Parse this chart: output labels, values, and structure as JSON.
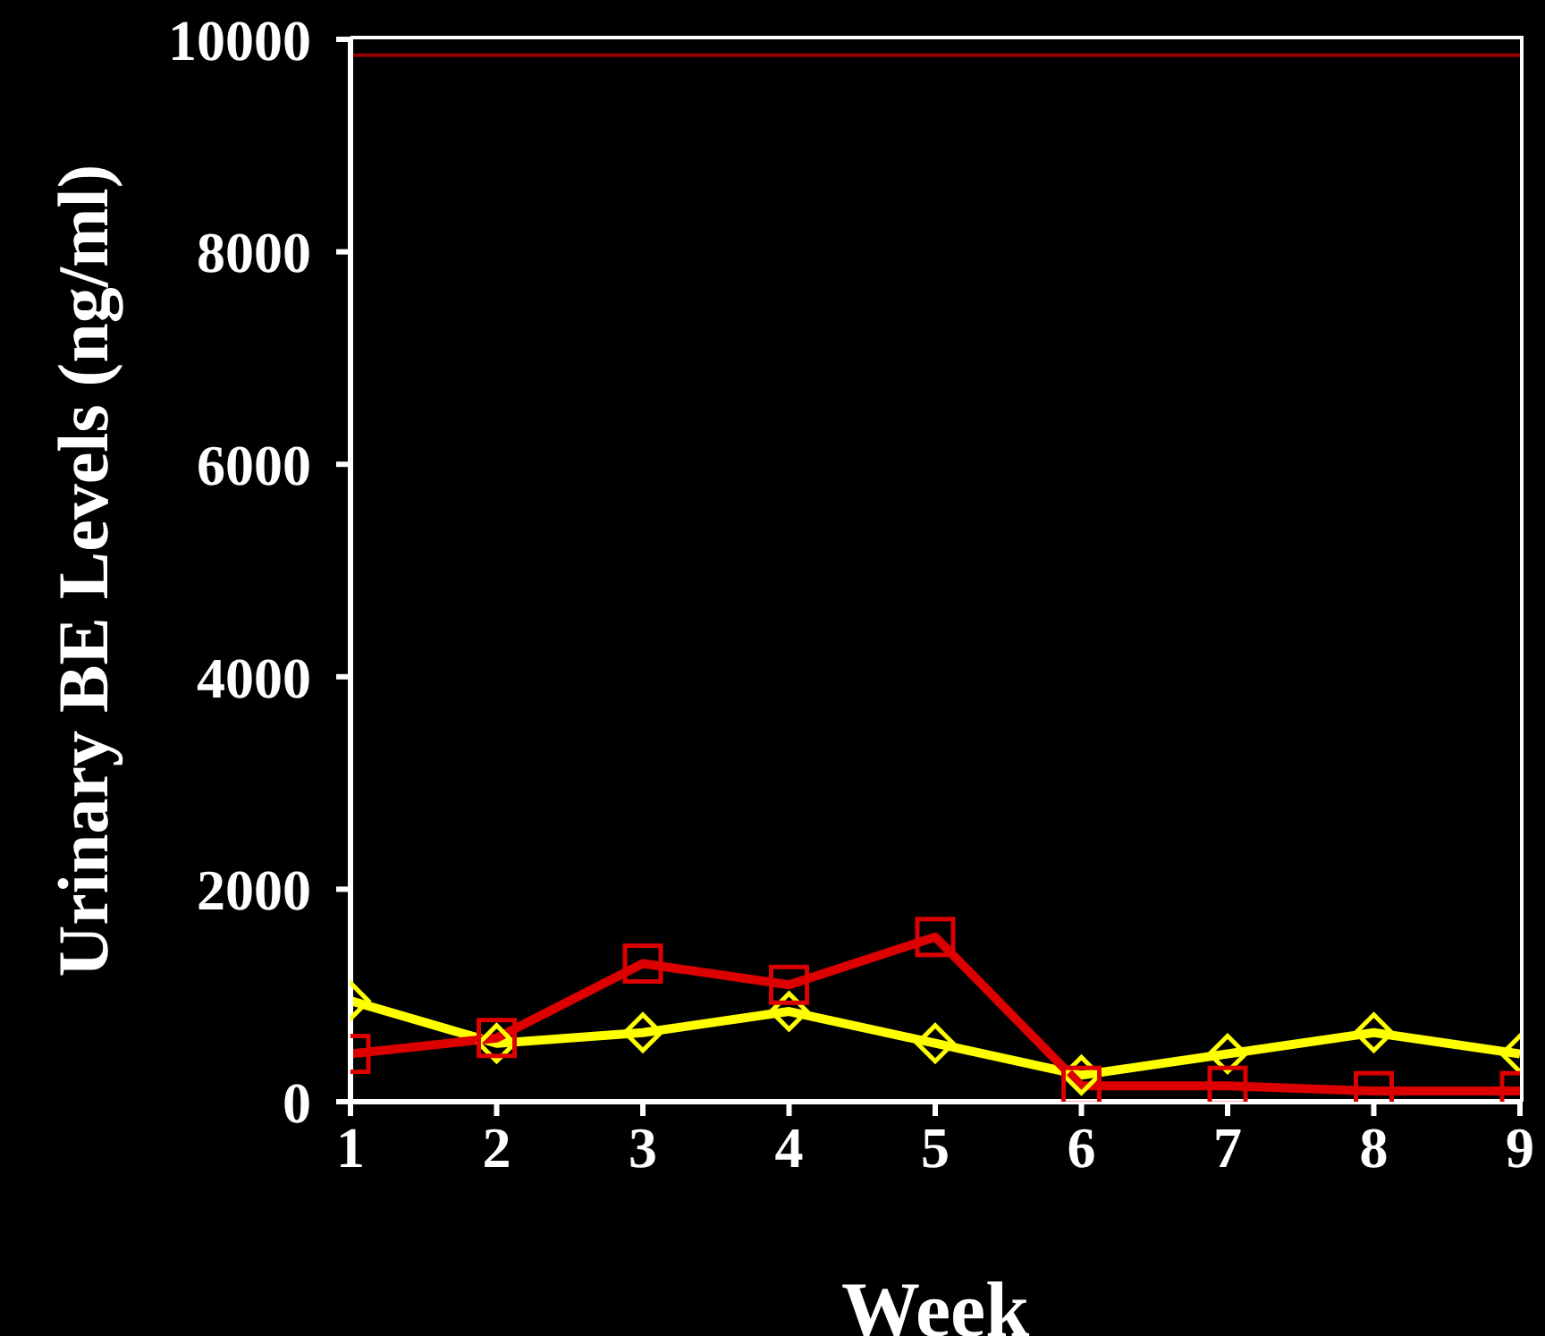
{
  "chart_data": {
    "type": "line",
    "xlabel": "Week",
    "ylabel": "Urinary BE Levels (ng/ml)",
    "x": [
      1,
      2,
      3,
      4,
      5,
      6,
      7,
      8,
      9
    ],
    "xlim": [
      1,
      9
    ],
    "xticks": [
      1,
      2,
      3,
      4,
      5,
      6,
      7,
      8,
      9
    ],
    "ylim": [
      0,
      10000
    ],
    "yticks": [
      0,
      2000,
      4000,
      6000,
      8000,
      10000
    ],
    "grid": false,
    "legend": false,
    "line_style": "solid",
    "ref_lines": [
      {
        "axis": "y",
        "value": 9850,
        "color": "#990000"
      }
    ],
    "series": [
      {
        "color": "#ffff00",
        "marker": "diamond",
        "values": [
          950,
          550,
          650,
          850,
          550,
          250,
          450,
          650,
          450
        ]
      },
      {
        "color": "#dd0000",
        "marker": "square",
        "values": [
          450,
          600,
          1300,
          1100,
          1550,
          150,
          150,
          100,
          100
        ]
      }
    ]
  }
}
